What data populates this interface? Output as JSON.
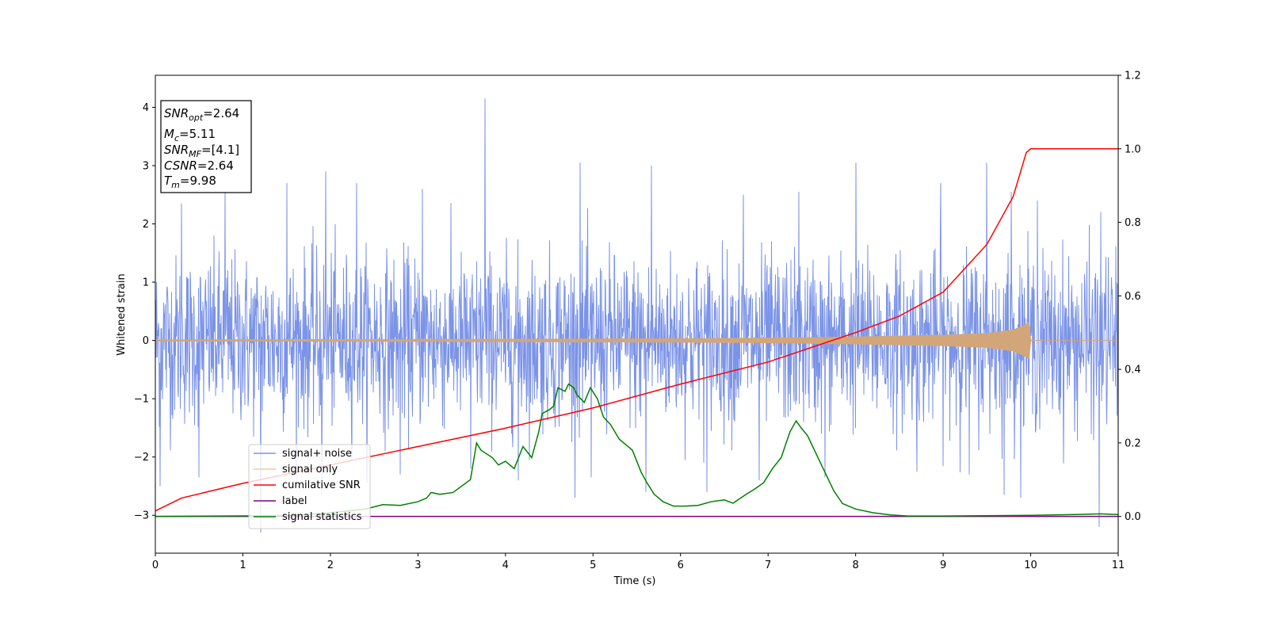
{
  "chart_data": {
    "type": "line",
    "xlabel": "Time (s)",
    "ylabel": "Whitened strain",
    "xlim": [
      0,
      11
    ],
    "ylim": [
      -3.65,
      4.55
    ],
    "y2lim": [
      -0.1,
      1.2
    ],
    "xticks": [
      "0",
      "1",
      "2",
      "3",
      "4",
      "5",
      "6",
      "7",
      "8",
      "9",
      "10",
      "11"
    ],
    "yticks": [
      "−3",
      "−2",
      "−1",
      "0",
      "1",
      "2",
      "3",
      "4"
    ],
    "y2ticks": [
      "0.0",
      "0.2",
      "0.4",
      "0.6",
      "0.8",
      "1.0",
      "1.2"
    ],
    "colors": {
      "noise": "#7b93e8",
      "signal": "#d2a679",
      "snr": "#ff0000",
      "label": "#800080",
      "stats": "#008000"
    },
    "annotation": {
      "snr_opt": "=2.64",
      "mc": "=5.11",
      "snr_mf": "=[4.1]",
      "csnr": "=2.64",
      "tm": "=9.98"
    },
    "legend": {
      "noise": "signal+ noise",
      "signal": "signal only",
      "snr": "cumilative SNR",
      "label": "label",
      "stats": "signal statistics"
    },
    "noise_spikes": {
      "x": [
        0.3,
        0.8,
        1.5,
        1.95,
        2.3,
        3.05,
        3.77,
        4.85,
        5.67,
        6.72,
        7.35,
        8.0,
        8.97,
        9.5,
        9.78,
        10.08,
        10.8
      ],
      "y": [
        2.35,
        2.6,
        2.7,
        2.9,
        2.7,
        2.6,
        4.15,
        3.05,
        3.0,
        2.5,
        2.55,
        3.05,
        2.7,
        3.05,
        2.55,
        2.4,
        2.2
      ]
    },
    "noise_dips": {
      "x": [
        0.05,
        0.5,
        1.2,
        1.9,
        2.8,
        3.6,
        4.15,
        4.98,
        5.6,
        6.3,
        6.9,
        7.65,
        8.7,
        9.3,
        9.7,
        10.78,
        11.0
      ],
      "y": [
        -2.5,
        -2.35,
        -3.3,
        -2.65,
        -2.3,
        -2.2,
        -2.4,
        -2.35,
        -2.6,
        -2.6,
        -2.4,
        -2.35,
        -2.25,
        -2.3,
        -2.65,
        -3.2,
        -2.3
      ]
    },
    "signal_envelope": {
      "x": [
        0,
        2,
        4,
        6,
        7,
        8,
        9,
        9.5,
        9.8,
        9.95,
        9.98,
        10.0,
        11.0
      ],
      "y": [
        0.01,
        0.015,
        0.02,
        0.03,
        0.04,
        0.06,
        0.09,
        0.12,
        0.18,
        0.28,
        0.32,
        0.0,
        0.0
      ]
    },
    "cumulative_snr": {
      "x": [
        0,
        0.3,
        1,
        2,
        3,
        4,
        5,
        6,
        7,
        8,
        8.5,
        9,
        9.5,
        9.8,
        9.95,
        10.0,
        11.0
      ],
      "y": [
        0.015,
        0.05,
        0.09,
        0.14,
        0.19,
        0.24,
        0.295,
        0.36,
        0.42,
        0.5,
        0.545,
        0.61,
        0.74,
        0.87,
        0.99,
        1.0,
        1.0
      ]
    },
    "label_line": {
      "x": [
        0,
        11
      ],
      "y": [
        0,
        0
      ]
    },
    "signal_statistics": {
      "x": [
        0,
        1.5,
        2.0,
        2.4,
        2.6,
        2.8,
        3.0,
        3.1,
        3.15,
        3.25,
        3.4,
        3.6,
        3.67,
        3.72,
        3.85,
        3.92,
        4.0,
        4.1,
        4.2,
        4.3,
        4.38,
        4.42,
        4.5,
        4.55,
        4.6,
        4.68,
        4.72,
        4.78,
        4.82,
        4.9,
        4.97,
        5.05,
        5.12,
        5.2,
        5.3,
        5.4,
        5.45,
        5.55,
        5.62,
        5.7,
        5.8,
        5.92,
        6.05,
        6.2,
        6.35,
        6.5,
        6.6,
        6.75,
        6.85,
        6.95,
        7.05,
        7.15,
        7.25,
        7.32,
        7.38,
        7.45,
        7.55,
        7.65,
        7.75,
        7.85,
        8.0,
        8.2,
        8.4,
        8.6,
        9.0,
        10.0,
        10.5,
        10.8,
        11.0
      ],
      "y": [
        0.0,
        0.002,
        0.01,
        0.02,
        0.032,
        0.03,
        0.04,
        0.05,
        0.065,
        0.06,
        0.065,
        0.1,
        0.2,
        0.18,
        0.16,
        0.14,
        0.15,
        0.13,
        0.19,
        0.16,
        0.23,
        0.28,
        0.29,
        0.3,
        0.35,
        0.34,
        0.36,
        0.35,
        0.33,
        0.31,
        0.35,
        0.32,
        0.27,
        0.25,
        0.21,
        0.19,
        0.18,
        0.12,
        0.09,
        0.06,
        0.04,
        0.028,
        0.028,
        0.03,
        0.04,
        0.045,
        0.036,
        0.06,
        0.075,
        0.092,
        0.13,
        0.16,
        0.23,
        0.26,
        0.24,
        0.22,
        0.17,
        0.12,
        0.07,
        0.035,
        0.02,
        0.01,
        0.004,
        0.001,
        0.001,
        0.003,
        0.005,
        0.007,
        0.005
      ]
    }
  }
}
